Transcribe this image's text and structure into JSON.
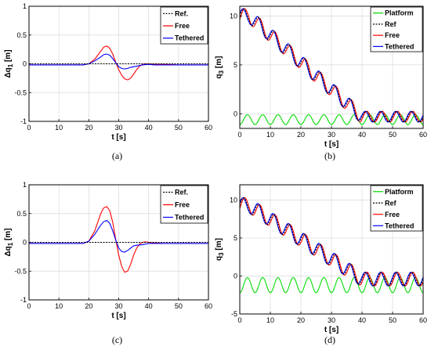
{
  "chart_data": [
    {
      "id": "a",
      "type": "line",
      "caption": "(a)",
      "xlabel": "t [s]",
      "ylabel": "Δq",
      "ylabel_sub": "1",
      "ylabel_unit": " [m]",
      "xlim": [
        0,
        60
      ],
      "ylim": [
        -1,
        1
      ],
      "xticks": [
        0,
        10,
        20,
        30,
        40,
        50,
        60
      ],
      "yticks": [
        -1,
        -0.5,
        0,
        0.5,
        1
      ],
      "yticklabels": [
        "-1",
        "-0.5",
        "0",
        "0.5",
        "1"
      ],
      "grid": true,
      "legend_position": "top-right",
      "series": [
        {
          "name": "Ref.",
          "color": "#000000",
          "dash": true,
          "x": [
            0,
            60
          ],
          "y": [
            0,
            0
          ]
        },
        {
          "name": "Free",
          "color": "#ff0000",
          "dash": false,
          "x": [
            0,
            18,
            20,
            22,
            24,
            25,
            26,
            27,
            28,
            29,
            30,
            31,
            32,
            33,
            34,
            35,
            36,
            37,
            38,
            39,
            40,
            42,
            45,
            50,
            55,
            60
          ],
          "y": [
            -0.02,
            -0.02,
            0.0,
            0.08,
            0.22,
            0.29,
            0.31,
            0.27,
            0.17,
            0.03,
            -0.1,
            -0.2,
            -0.26,
            -0.28,
            -0.25,
            -0.18,
            -0.1,
            -0.04,
            -0.01,
            0.0,
            0.0,
            -0.01,
            -0.01,
            -0.02,
            -0.02,
            -0.02
          ]
        },
        {
          "name": "Tethered",
          "color": "#0000ff",
          "dash": false,
          "x": [
            0,
            18,
            20,
            22,
            24,
            25,
            26,
            27,
            28,
            29,
            30,
            31,
            32,
            33,
            34,
            35,
            36,
            37,
            38,
            40,
            42,
            45,
            50,
            55,
            60
          ],
          "y": [
            -0.02,
            -0.02,
            0.0,
            0.05,
            0.12,
            0.16,
            0.17,
            0.15,
            0.09,
            0.02,
            -0.05,
            -0.08,
            -0.09,
            -0.08,
            -0.06,
            -0.05,
            -0.04,
            -0.03,
            -0.02,
            -0.01,
            -0.02,
            -0.02,
            -0.02,
            -0.02,
            -0.02
          ]
        }
      ]
    },
    {
      "id": "b",
      "type": "line",
      "caption": "(b)",
      "xlabel": "t [s]",
      "ylabel": "q",
      "ylabel_sub": "3",
      "ylabel_unit": " [m]",
      "xlim": [
        0,
        60
      ],
      "ylim": [
        -1.5,
        11
      ],
      "xticks": [
        0,
        10,
        20,
        30,
        40,
        50,
        60
      ],
      "yticks": [
        0,
        5,
        10
      ],
      "yticklabels": [
        "0",
        "5",
        "10"
      ],
      "grid": true,
      "legend_position": "top-right",
      "platform": {
        "offset": -0.6,
        "amplitude": 0.5,
        "period": 5.0
      },
      "reference": {
        "start": 10,
        "end": -0.3,
        "ramp_start": 3,
        "ramp_end": 40,
        "amplitude": 0.75,
        "period": 5.0,
        "amplitude_end": 0.55
      },
      "series": [
        {
          "name": "Platform",
          "color": "#00dd00",
          "dash": false
        },
        {
          "name": "Ref",
          "color": "#000000",
          "dash": true
        },
        {
          "name": "Free",
          "color": "#ff0000",
          "dash": false
        },
        {
          "name": "Tethered",
          "color": "#0000ff",
          "dash": false
        }
      ]
    },
    {
      "id": "c",
      "type": "line",
      "caption": "(c)",
      "xlabel": "t [s]",
      "ylabel": "Δq",
      "ylabel_sub": "1",
      "ylabel_unit": " [m]",
      "xlim": [
        0,
        60
      ],
      "ylim": [
        -1,
        1
      ],
      "xticks": [
        0,
        10,
        20,
        30,
        40,
        50,
        60
      ],
      "yticks": [
        -1,
        -0.5,
        0,
        0.5,
        1
      ],
      "yticklabels": [
        "-1",
        "-0.5",
        "0",
        "0.5",
        "1"
      ],
      "grid": true,
      "legend_position": "top-right",
      "series": [
        {
          "name": "Ref.",
          "color": "#000000",
          "dash": true,
          "x": [
            0,
            60
          ],
          "y": [
            0,
            0
          ]
        },
        {
          "name": "Free",
          "color": "#ff0000",
          "dash": false,
          "x": [
            0,
            18,
            20,
            22,
            24,
            25,
            26,
            27,
            28,
            29,
            30,
            31,
            32,
            33,
            34,
            35,
            36,
            37,
            38,
            39,
            40,
            42,
            45,
            50,
            55,
            60
          ],
          "y": [
            -0.02,
            -0.02,
            0.02,
            0.2,
            0.5,
            0.6,
            0.62,
            0.55,
            0.35,
            0.05,
            -0.22,
            -0.42,
            -0.52,
            -0.5,
            -0.38,
            -0.22,
            -0.1,
            -0.03,
            0.0,
            0.01,
            0.0,
            -0.01,
            -0.02,
            -0.02,
            -0.02,
            -0.02
          ]
        },
        {
          "name": "Tethered",
          "color": "#0000ff",
          "dash": false,
          "x": [
            0,
            18,
            20,
            22,
            24,
            25,
            26,
            27,
            28,
            29,
            30,
            31,
            32,
            33,
            34,
            35,
            36,
            38,
            40,
            42,
            45,
            50,
            55,
            60
          ],
          "y": [
            -0.02,
            -0.02,
            0.02,
            0.14,
            0.3,
            0.36,
            0.38,
            0.33,
            0.2,
            0.04,
            -0.1,
            -0.16,
            -0.17,
            -0.14,
            -0.1,
            -0.06,
            -0.05,
            -0.04,
            -0.02,
            -0.02,
            -0.02,
            -0.02,
            -0.02,
            -0.02
          ]
        }
      ]
    },
    {
      "id": "d",
      "type": "line",
      "caption": "(d)",
      "xlabel": "t [s]",
      "ylabel": "q",
      "ylabel_sub": "3",
      "ylabel_unit": " [m]",
      "xlim": [
        0,
        60
      ],
      "ylim": [
        -5,
        12
      ],
      "xticks": [
        0,
        10,
        20,
        30,
        40,
        50,
        60
      ],
      "yticks": [
        -5,
        0,
        5,
        10
      ],
      "yticklabels": [
        "-5",
        "0",
        "5",
        "10"
      ],
      "grid": true,
      "legend_position": "top-right",
      "platform": {
        "offset": -1.2,
        "amplitude": 1.0,
        "period": 5.0
      },
      "reference": {
        "start": 9.3,
        "end": -0.4,
        "ramp_start": 3,
        "ramp_end": 40,
        "amplitude": 1.0,
        "period": 5.0,
        "amplitude_end": 0.9
      },
      "series": [
        {
          "name": "Platform",
          "color": "#00dd00",
          "dash": false
        },
        {
          "name": "Ref",
          "color": "#000000",
          "dash": true
        },
        {
          "name": "Free",
          "color": "#ff0000",
          "dash": false
        },
        {
          "name": "Tethered",
          "color": "#0000ff",
          "dash": false
        }
      ]
    }
  ]
}
